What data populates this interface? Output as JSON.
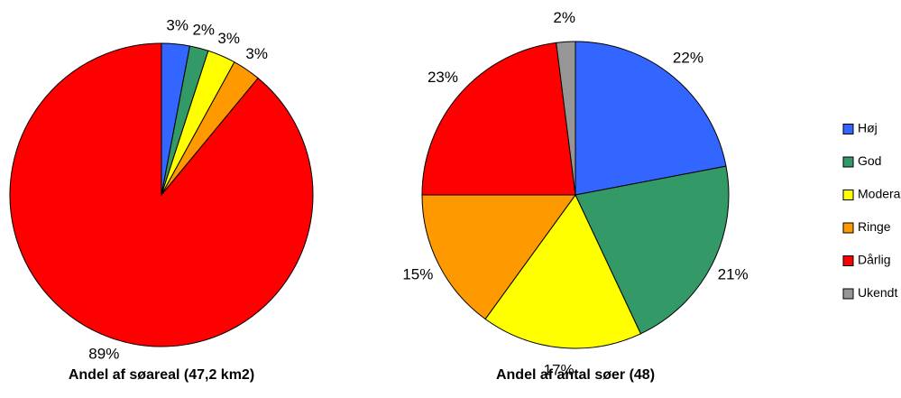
{
  "chart_data": [
    {
      "type": "pie",
      "title": "Andel af søareal (47,2 km2)",
      "categories": [
        "Høj",
        "God",
        "Moderat",
        "Ringe",
        "Dårlig"
      ],
      "values": [
        3,
        2,
        3,
        3,
        89
      ],
      "colors": [
        "#3366ff",
        "#339966",
        "#ffff00",
        "#ff9900",
        "#ff0000"
      ]
    },
    {
      "type": "pie",
      "title": "Andel af antal søer (48)",
      "categories": [
        "Høj",
        "God",
        "Moderat",
        "Ringe",
        "Dårlig",
        "Ukendt"
      ],
      "values": [
        22,
        21,
        17,
        15,
        23,
        2
      ],
      "colors": [
        "#3366ff",
        "#339966",
        "#ffff00",
        "#ff9900",
        "#ff0000",
        "#969696"
      ],
      "legend": "right"
    }
  ]
}
